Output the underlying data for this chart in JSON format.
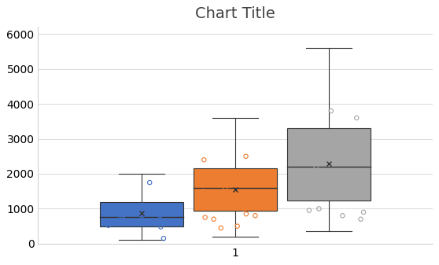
{
  "title": "Chart Title",
  "title_fontsize": 14,
  "xtick_label": "1",
  "ylim": [
    0,
    6200
  ],
  "yticks": [
    0,
    1000,
    2000,
    3000,
    4000,
    5000,
    6000
  ],
  "boxes": [
    {
      "color": "#4472C4",
      "edge_color": "#2E4F9A",
      "whislo": 100,
      "q1": 480,
      "med": 750,
      "q3": 1200,
      "whishi": 2000,
      "mean": 870,
      "fliers_y": [
        480,
        520,
        600,
        650,
        700,
        720,
        750,
        800,
        850,
        900,
        950,
        1000,
        1050,
        1100,
        150,
        1750
      ]
    },
    {
      "color": "#ED7D31",
      "edge_color": "#C05C10",
      "whislo": 200,
      "q1": 950,
      "med": 1600,
      "q3": 2150,
      "whishi": 3600,
      "mean": 1550,
      "fliers_y": [
        450,
        500,
        700,
        750,
        800,
        850,
        1000,
        1200,
        1500,
        1600,
        1700,
        1800,
        1900,
        2000,
        2400,
        2500
      ]
    },
    {
      "color": "#A5A5A5",
      "edge_color": "#767676",
      "whislo": 350,
      "q1": 1230,
      "med": 2200,
      "q3": 3300,
      "whishi": 5600,
      "mean": 2300,
      "fliers_y": [
        700,
        800,
        900,
        950,
        1000,
        1350,
        1400,
        1500,
        1600,
        2000,
        2200,
        2700,
        3000,
        3600,
        3800
      ]
    }
  ],
  "positions": [
    0.82,
    1.0,
    1.18
  ],
  "box_width": 0.16,
  "xlim": [
    0.62,
    1.38
  ],
  "background_color": "#FFFFFF",
  "grid_color": "#D9D9D9",
  "flier_size": 15,
  "flier_linewidth": 0.8
}
